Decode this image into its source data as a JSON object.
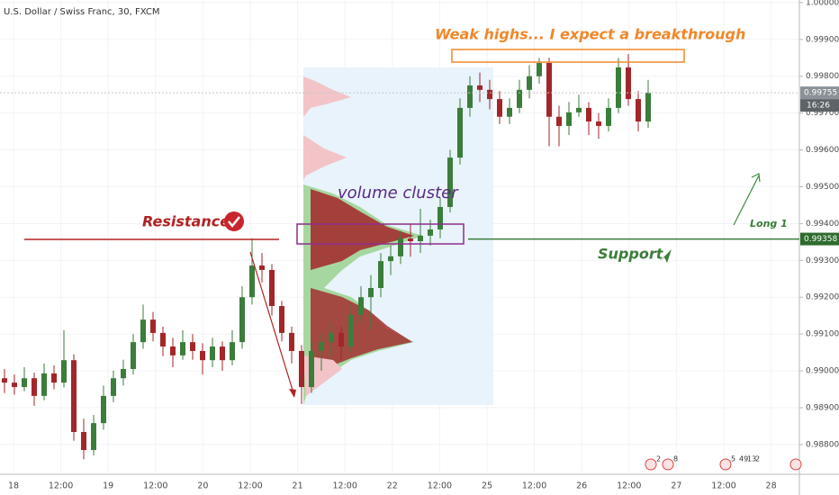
{
  "chart_data": {
    "type": "candlestick",
    "title": "U.S. Dollar / Swiss Franc, 30, FXCM",
    "categories": [
      "18",
      "12:00",
      "19",
      "12:00",
      "20",
      "12:00",
      "21",
      "12:00",
      "22",
      "12:00",
      "25",
      "12:00",
      "26",
      "12:00",
      "27",
      "12:00",
      "28"
    ],
    "ylim": [
      0.98724,
      1.00007
    ],
    "yticks": [
      {
        "value": 0.988,
        "label": "0.98800"
      },
      {
        "value": 0.989,
        "label": "0.98900"
      },
      {
        "value": 0.99,
        "label": "0.99000"
      },
      {
        "value": 0.991,
        "label": "0.99100"
      },
      {
        "value": 0.992,
        "label": "0.99200"
      },
      {
        "value": 0.993,
        "label": "0.99300"
      },
      {
        "value": 0.994,
        "label": "0.99400"
      },
      {
        "value": 0.995,
        "label": "0.99500"
      },
      {
        "value": 0.996,
        "label": "0.99600"
      },
      {
        "value": 0.997,
        "label": "0.99700"
      },
      {
        "value": 0.998,
        "label": "0.99800"
      },
      {
        "value": 0.999,
        "label": "0.99900"
      },
      {
        "value": 1.0,
        "label": "1.00000"
      }
    ],
    "grid": true,
    "up_color": "#3b7d3a",
    "down_color": "#a3262a",
    "candles": [
      [
        0.9898,
        0.99005,
        0.9894,
        0.98968
      ],
      [
        0.98968,
        0.9899,
        0.98935,
        0.98956
      ],
      [
        0.98956,
        0.9901,
        0.98945,
        0.9898
      ],
      [
        0.9898,
        0.98995,
        0.98905,
        0.98932
      ],
      [
        0.98932,
        0.9902,
        0.9892,
        0.98993
      ],
      [
        0.98993,
        0.99015,
        0.9895,
        0.98968
      ],
      [
        0.98968,
        0.9911,
        0.98955,
        0.99029
      ],
      [
        0.99029,
        0.99045,
        0.9881,
        0.98834
      ],
      [
        0.98834,
        0.9887,
        0.9876,
        0.98785
      ],
      [
        0.98785,
        0.9888,
        0.9877,
        0.98858
      ],
      [
        0.98858,
        0.9896,
        0.9884,
        0.98932
      ],
      [
        0.98932,
        0.99,
        0.98915,
        0.9898
      ],
      [
        0.9898,
        0.9903,
        0.9896,
        0.99005
      ],
      [
        0.99005,
        0.991,
        0.9899,
        0.99078
      ],
      [
        0.99078,
        0.9918,
        0.9906,
        0.99139
      ],
      [
        0.99139,
        0.9916,
        0.9908,
        0.99103
      ],
      [
        0.99103,
        0.9912,
        0.9904,
        0.99066
      ],
      [
        0.99066,
        0.9909,
        0.9901,
        0.99042
      ],
      [
        0.99042,
        0.9911,
        0.9903,
        0.99078
      ],
      [
        0.99078,
        0.991,
        0.9903,
        0.99054
      ],
      [
        0.99054,
        0.99075,
        0.9899,
        0.99029
      ],
      [
        0.99029,
        0.9909,
        0.9901,
        0.99066
      ],
      [
        0.99066,
        0.9908,
        0.99,
        0.99029
      ],
      [
        0.99029,
        0.9911,
        0.99015,
        0.99078
      ],
      [
        0.99078,
        0.9923,
        0.9906,
        0.992
      ],
      [
        0.992,
        0.9936,
        0.9918,
        0.99286
      ],
      [
        0.99286,
        0.9932,
        0.9924,
        0.99274
      ],
      [
        0.99274,
        0.9929,
        0.9915,
        0.99176
      ],
      [
        0.99176,
        0.9919,
        0.9908,
        0.99103
      ],
      [
        0.99103,
        0.9912,
        0.9902,
        0.99054
      ],
      [
        0.99054,
        0.9907,
        0.9891,
        0.98956
      ],
      [
        0.98956,
        0.9908,
        0.9894,
        0.99054
      ],
      [
        0.99054,
        0.991,
        0.99,
        0.99078
      ],
      [
        0.99078,
        0.9913,
        0.9904,
        0.99103
      ],
      [
        0.99103,
        0.9912,
        0.9903,
        0.99066
      ],
      [
        0.99066,
        0.9918,
        0.9905,
        0.99152
      ],
      [
        0.99152,
        0.9923,
        0.9913,
        0.992
      ],
      [
        0.992,
        0.9926,
        0.9911,
        0.99225
      ],
      [
        0.99225,
        0.9932,
        0.992,
        0.99298
      ],
      [
        0.99298,
        0.9934,
        0.9926,
        0.99311
      ],
      [
        0.99311,
        0.9938,
        0.9929,
        0.99359
      ],
      [
        0.99359,
        0.994,
        0.9931,
        0.99352
      ],
      [
        0.99352,
        0.9944,
        0.9932,
        0.99367
      ],
      [
        0.99367,
        0.9941,
        0.9934,
        0.99384
      ],
      [
        0.99384,
        0.9947,
        0.9936,
        0.99445
      ],
      [
        0.99445,
        0.996,
        0.9943,
        0.99579
      ],
      [
        0.99579,
        0.9974,
        0.9956,
        0.99714
      ],
      [
        0.99714,
        0.998,
        0.9969,
        0.99775
      ],
      [
        0.99775,
        0.9981,
        0.9973,
        0.99763
      ],
      [
        0.99763,
        0.9979,
        0.9971,
        0.99738
      ],
      [
        0.99738,
        0.9976,
        0.9967,
        0.9969
      ],
      [
        0.9969,
        0.9974,
        0.9967,
        0.99714
      ],
      [
        0.99714,
        0.9979,
        0.997,
        0.99763
      ],
      [
        0.99763,
        0.9983,
        0.9974,
        0.998
      ],
      [
        0.998,
        0.9985,
        0.9978,
        0.99836
      ],
      [
        0.99836,
        0.9985,
        0.9961,
        0.9969
      ],
      [
        0.9969,
        0.9972,
        0.9961,
        0.99665
      ],
      [
        0.99665,
        0.9973,
        0.9964,
        0.99702
      ],
      [
        0.99702,
        0.9975,
        0.9969,
        0.99714
      ],
      [
        0.99714,
        0.9973,
        0.9964,
        0.99677
      ],
      [
        0.99677,
        0.997,
        0.9963,
        0.99665
      ],
      [
        0.99665,
        0.9974,
        0.9965,
        0.99714
      ],
      [
        0.99714,
        0.9985,
        0.997,
        0.99824
      ],
      [
        0.99824,
        0.9986,
        0.9972,
        0.99738
      ],
      [
        0.99738,
        0.9976,
        0.9965,
        0.99677
      ],
      [
        0.99677,
        0.9979,
        0.9966,
        0.99755
      ]
    ],
    "last_price": 0.99755,
    "countdown": "16:26",
    "support_price": 0.99358,
    "annotations": {
      "weak_highs": "Weak highs... I expect a breakthrough",
      "volume_cluster": "volume cluster",
      "resistance": "Resistance",
      "support": "Support",
      "long": "Long 1"
    },
    "event_badges": [
      "2",
      "8",
      "5",
      "49",
      "13",
      "2"
    ]
  }
}
